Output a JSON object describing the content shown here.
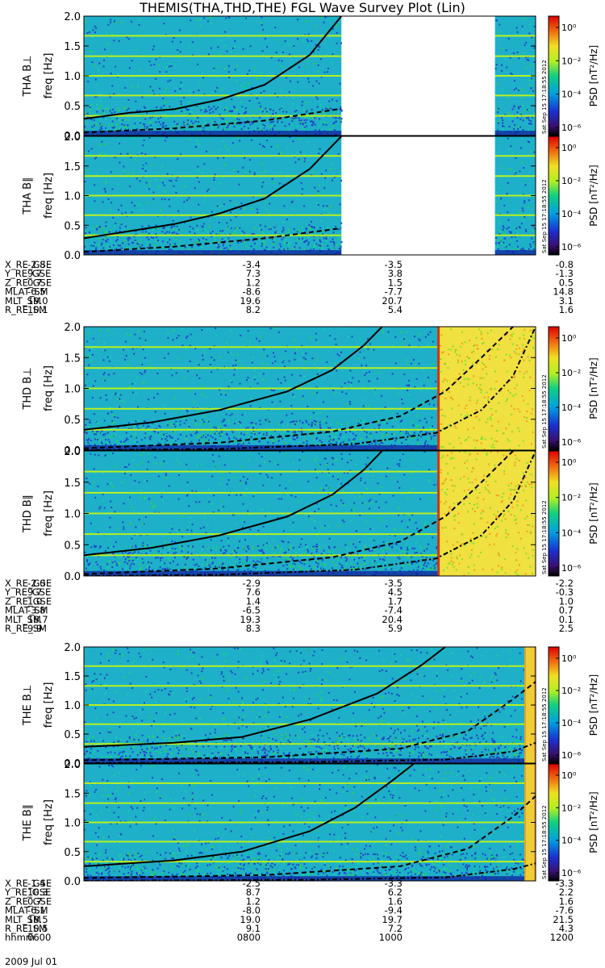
{
  "title": "THEMIS(THA,THD,THE) FGL Wave Survey Plot (Lin)",
  "colors": {
    "background_spectrum": "#1db0c8",
    "noise_blue": "#2144c8",
    "band_yellow": "#b8f020",
    "hot_yellow": "#f0e040",
    "hot_orange": "#f0a020",
    "curve": "#000000"
  },
  "colorbar": {
    "label": "PSD [nT²/Hz]",
    "tick_labels": [
      "10⁰",
      "10⁻²",
      "10⁻⁴",
      "10⁻⁶"
    ],
    "stamp": "Sat Sep 15 17:18:55 2012"
  },
  "chart_data": [
    {
      "type": "heatmap",
      "probe": "THA",
      "component": "B⊥",
      "ylabel": "THA B⊥",
      "ylabel2": "freq [Hz]",
      "ylim": [
        0,
        2.0
      ],
      "yticks": [
        "0.0",
        "0.5",
        "1.0",
        "1.5",
        "2.0"
      ],
      "data_ranges": [
        [
          0,
          0.57
        ],
        [
          0.91,
          1.0
        ]
      ],
      "curves": {
        "solid_x": [
          0,
          0.1,
          0.2,
          0.3,
          0.4,
          0.5,
          0.57
        ],
        "solid_y": [
          0.28,
          0.38,
          0.44,
          0.6,
          0.85,
          1.35,
          2.0
        ],
        "dashed_x": [
          0,
          0.2,
          0.4,
          0.57
        ],
        "dashed_y": [
          0.05,
          0.12,
          0.25,
          0.45
        ]
      }
    },
    {
      "type": "heatmap",
      "probe": "THA",
      "component": "B∥",
      "ylabel": "THA B∥",
      "ylabel2": "freq [Hz]",
      "ylim": [
        0,
        2.0
      ],
      "yticks": [
        "0.0",
        "0.5",
        "1.0",
        "1.5",
        "2.0"
      ],
      "data_ranges": [
        [
          0,
          0.57
        ],
        [
          0.91,
          1.0
        ]
      ],
      "curves": {
        "solid_x": [
          0,
          0.1,
          0.2,
          0.3,
          0.4,
          0.5,
          0.57
        ],
        "solid_y": [
          0.28,
          0.4,
          0.52,
          0.7,
          0.95,
          1.45,
          2.0
        ],
        "dashed_x": [
          0,
          0.2,
          0.4,
          0.57
        ],
        "dashed_y": [
          0.05,
          0.14,
          0.28,
          0.45
        ]
      }
    },
    {
      "type": "heatmap",
      "probe": "THD",
      "component": "B⊥",
      "ylabel": "THD B⊥",
      "ylabel2": "freq [Hz]",
      "ylim": [
        0,
        2.0
      ],
      "yticks": [
        "0.0",
        "0.5",
        "1.0",
        "1.5",
        "2.0"
      ],
      "data_ranges": [
        [
          0,
          1.0
        ]
      ],
      "hot_from": 0.785,
      "curves": {
        "solid_x": [
          0,
          0.15,
          0.3,
          0.45,
          0.55,
          0.62,
          0.66
        ],
        "solid_y": [
          0.33,
          0.45,
          0.65,
          0.95,
          1.3,
          1.7,
          2.0
        ],
        "dashed_x": [
          0,
          0.3,
          0.55,
          0.7,
          0.8,
          0.88,
          0.95
        ],
        "dashed_y": [
          0.03,
          0.12,
          0.3,
          0.55,
          0.95,
          1.5,
          2.0
        ],
        "dashdot_x": [
          0,
          0.3,
          0.6,
          0.78,
          0.88,
          0.95,
          1.0
        ],
        "dashdot_y": [
          0.0,
          0.02,
          0.1,
          0.28,
          0.65,
          1.2,
          2.0
        ]
      }
    },
    {
      "type": "heatmap",
      "probe": "THD",
      "component": "B∥",
      "ylabel": "THD B∥",
      "ylabel2": "freq [Hz]",
      "ylim": [
        0,
        2.0
      ],
      "yticks": [
        "0.0",
        "0.5",
        "1.0",
        "1.5",
        "2.0"
      ],
      "data_ranges": [
        [
          0,
          1.0
        ]
      ],
      "hot_from": 0.785,
      "curves": {
        "solid_x": [
          0,
          0.15,
          0.3,
          0.45,
          0.55,
          0.62,
          0.66
        ],
        "solid_y": [
          0.33,
          0.45,
          0.65,
          0.95,
          1.3,
          1.7,
          2.0
        ],
        "dashed_x": [
          0,
          0.3,
          0.55,
          0.7,
          0.8,
          0.88,
          0.95
        ],
        "dashed_y": [
          0.03,
          0.12,
          0.3,
          0.55,
          0.95,
          1.5,
          2.0
        ],
        "dashdot_x": [
          0,
          0.3,
          0.6,
          0.78,
          0.88,
          0.95,
          1.0
        ],
        "dashdot_y": [
          0.0,
          0.02,
          0.1,
          0.28,
          0.65,
          1.2,
          2.0
        ]
      }
    },
    {
      "type": "heatmap",
      "probe": "THE",
      "component": "B⊥",
      "ylabel": "THE B⊥",
      "ylabel2": "freq [Hz]",
      "ylim": [
        0,
        2.0
      ],
      "yticks": [
        "0.0",
        "0.5",
        "1.0",
        "1.5",
        "2.0"
      ],
      "data_ranges": [
        [
          0,
          1.0
        ]
      ],
      "hot_strip_from": 0.975,
      "curves": {
        "solid_x": [
          0,
          0.2,
          0.35,
          0.5,
          0.65,
          0.75,
          0.8
        ],
        "solid_y": [
          0.28,
          0.35,
          0.45,
          0.75,
          1.2,
          1.7,
          2.0
        ],
        "dashed_x": [
          0,
          0.4,
          0.7,
          0.85,
          0.95,
          1.0
        ],
        "dashed_y": [
          0.05,
          0.1,
          0.25,
          0.55,
          1.1,
          1.4
        ],
        "dashdot_x": [
          0,
          0.5,
          0.8,
          0.95,
          1.0
        ],
        "dashdot_y": [
          0.0,
          0.02,
          0.06,
          0.2,
          0.35
        ]
      }
    },
    {
      "type": "heatmap",
      "probe": "THE",
      "component": "B∥",
      "ylabel": "THE B∥",
      "ylabel2": "freq [Hz]",
      "ylim": [
        0,
        2.0
      ],
      "yticks": [
        "0.0",
        "0.5",
        "1.0",
        "1.5",
        "2.0"
      ],
      "data_ranges": [
        [
          0,
          1.0
        ]
      ],
      "hot_strip_from": 0.975,
      "curves": {
        "solid_x": [
          0,
          0.2,
          0.35,
          0.5,
          0.6,
          0.68,
          0.73
        ],
        "solid_y": [
          0.25,
          0.35,
          0.5,
          0.85,
          1.25,
          1.7,
          2.0
        ],
        "dashed_x": [
          0,
          0.4,
          0.7,
          0.85,
          0.95,
          1.0
        ],
        "dashed_y": [
          0.05,
          0.1,
          0.25,
          0.55,
          1.1,
          1.45
        ],
        "dashdot_x": [
          0,
          0.5,
          0.8,
          0.95,
          1.0
        ],
        "dashdot_y": [
          0.0,
          0.02,
          0.06,
          0.2,
          0.3
        ]
      }
    }
  ],
  "ephemeris": [
    {
      "rows": [
        {
          "label": "X_RE_GSE",
          "values": [
            "-2.8",
            "-3.4",
            "-3.5",
            "-0.8"
          ]
        },
        {
          "label": "Y_RE_GSE",
          "values": [
            "9.7",
            "7.3",
            "3.8",
            "-1.3"
          ]
        },
        {
          "label": "Z_RE_GSE",
          "values": [
            "0.7",
            "1.2",
            "1.5",
            "0.5"
          ]
        },
        {
          "label": "MLAT_SM",
          "values": [
            "-6.5",
            "-8.6",
            "-7.7",
            "14.8"
          ]
        },
        {
          "label": "MLT_SM",
          "values": [
            "19.0",
            "19.6",
            "20.7",
            "3.1"
          ]
        },
        {
          "label": "R_RE_SM",
          "values": [
            "10.1",
            "8.2",
            "5.4",
            "1.6"
          ]
        }
      ]
    },
    {
      "rows": [
        {
          "label": "X_RE_GSE",
          "values": [
            "-2.0",
            "-2.9",
            "-3.5",
            "-2.2"
          ]
        },
        {
          "label": "Y_RE_GSE",
          "values": [
            "9.7",
            "7.6",
            "4.5",
            "-0.3"
          ]
        },
        {
          "label": "Z_RE_GSE",
          "values": [
            "1.0",
            "1.4",
            "1.7",
            "1.0"
          ]
        },
        {
          "label": "MLAT_SM",
          "values": [
            "-3.8",
            "-6.5",
            "-7.4",
            "0.7"
          ]
        },
        {
          "label": "MLT_SM",
          "values": [
            "18.7",
            "19.3",
            "20.4",
            "0.1"
          ]
        },
        {
          "label": "R_RE_SM",
          "values": [
            "9.9",
            "8.3",
            "5.9",
            "2.5"
          ]
        }
      ]
    },
    {
      "rows": [
        {
          "label": "X_RE_GSE",
          "values": [
            "-1.4",
            "-2.5",
            "-3.3",
            "-3.3"
          ]
        },
        {
          "label": "Y_RE_GSE",
          "values": [
            "10.3",
            "8.7",
            "6.2",
            "2.2"
          ]
        },
        {
          "label": "Z_RE_GSE",
          "values": [
            "0.7",
            "1.2",
            "1.6",
            "1.6"
          ]
        },
        {
          "label": "MLAT_SM",
          "values": [
            "-6.1",
            "-8.0",
            "-9.4",
            "-7.6"
          ]
        },
        {
          "label": "MLT_SM",
          "values": [
            "18.5",
            "19.0",
            "19.7",
            "21.5"
          ]
        },
        {
          "label": "R_RE_SM",
          "values": [
            "10.5",
            "9.1",
            "7.2",
            "4.3"
          ]
        },
        {
          "label": "hhmm",
          "values": [
            "0600",
            "0800",
            "1000",
            "1200"
          ]
        }
      ]
    }
  ],
  "date_label": "2009 Jul 01"
}
